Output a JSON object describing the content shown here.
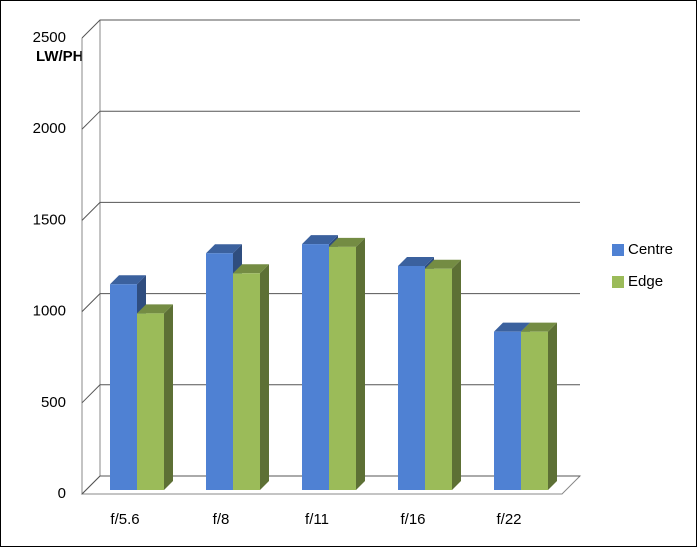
{
  "chart_data": {
    "type": "bar",
    "y_label": "LW/PH",
    "categories": [
      "f/5.6",
      "f/8",
      "f/11",
      "f/16",
      "f/22"
    ],
    "series": [
      {
        "name": "Centre",
        "color": "#4f81d3",
        "values": [
          1150,
          1320,
          1370,
          1250,
          890
        ]
      },
      {
        "name": "Edge",
        "color": "#9bbb59",
        "values": [
          990,
          1210,
          1355,
          1235,
          890
        ]
      }
    ],
    "ylim": [
      0,
      2500
    ],
    "yticks": [
      0,
      500,
      1000,
      1500,
      2000,
      2500
    ],
    "grid": true,
    "legend": "right"
  }
}
